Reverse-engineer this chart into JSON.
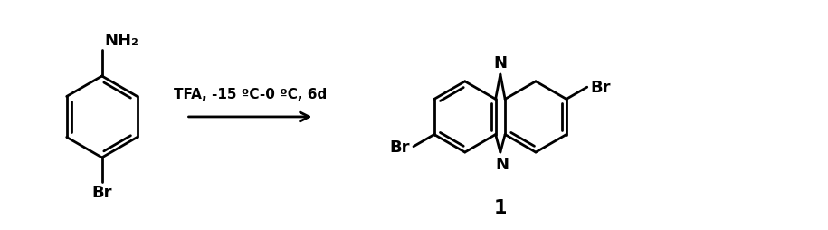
{
  "bg_color": "#ffffff",
  "line_color": "#000000",
  "line_width": 2.0,
  "font_size_label": 13,
  "font_size_small": 11,
  "font_size_number": 15,
  "arrow_label": "TFA, -15 ºC-0 ºC, 6d",
  "compound_number": "1",
  "nh2_label": "NH₂",
  "br_label": "Br",
  "N_label": "N",
  "figsize": [
    9.15,
    2.55
  ],
  "dpi": 100
}
